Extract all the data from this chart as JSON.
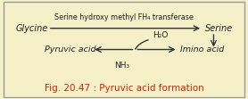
{
  "bg_color": "#f5f0c8",
  "border_color": "#999999",
  "title": "Fig. 20.47 : Pyruvic acid formation",
  "title_color": "#cc2200",
  "title_fontsize": 7.5,
  "glycine_text": "Glycine",
  "serine_text": "Serine",
  "top_arrow_label": "Serine hydroxy methyl FH₄ transferase",
  "pyruvic_text": "Pyruvic acid",
  "imino_text": "Imino acid",
  "h2o_text": "H₂O",
  "nh3_text": "NH₃",
  "text_color": "#222222",
  "arrow_color": "#333333"
}
